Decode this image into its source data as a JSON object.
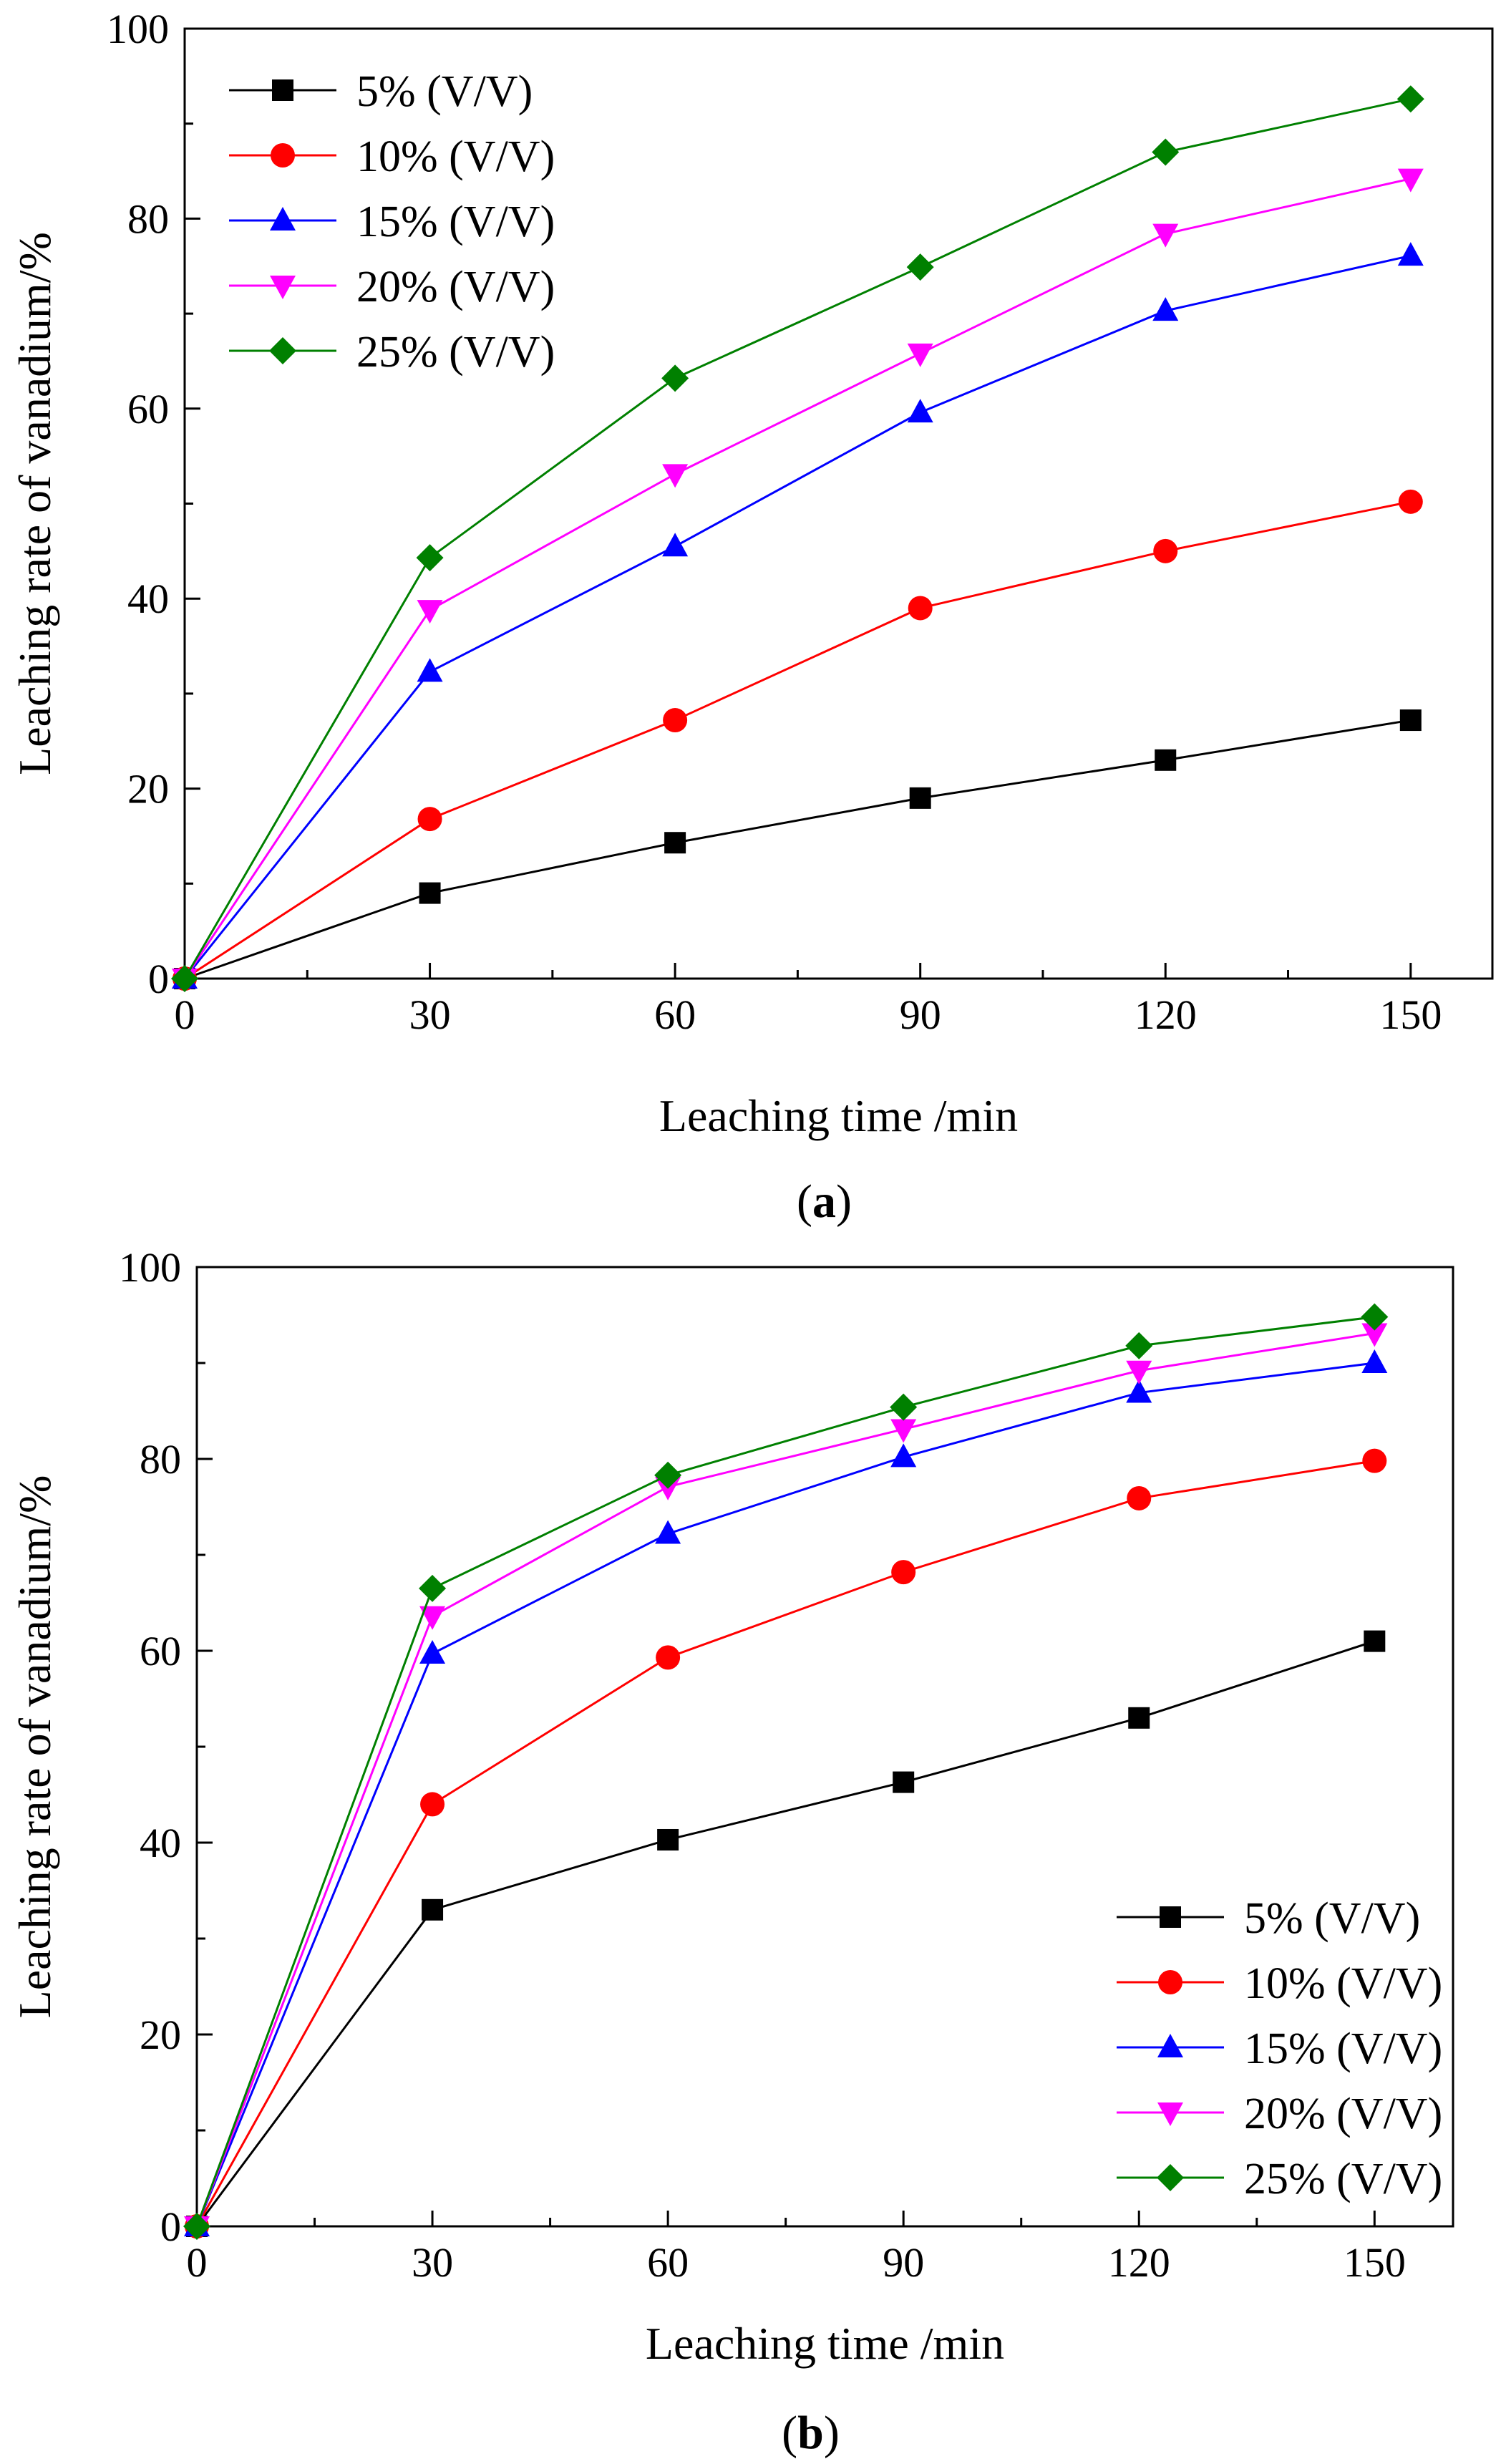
{
  "figure": {
    "panels": [
      "(a)",
      "(b)"
    ]
  },
  "chart_data": [
    {
      "type": "line",
      "panel": "a",
      "label_prefix": "(",
      "label_letter": "a",
      "label_suffix": ")",
      "xlabel": "Leaching time /min",
      "ylabel": "Leaching rate of vanadium/%",
      "xlim": [
        0,
        160
      ],
      "ylim": [
        0,
        100
      ],
      "xticks": [
        0,
        30,
        60,
        90,
        120,
        150
      ],
      "yticks": [
        0,
        20,
        40,
        60,
        80,
        100
      ],
      "legend_position": "top-left",
      "x": [
        0,
        30,
        60,
        90,
        120,
        150
      ],
      "series": [
        {
          "name": "5% (V/V)",
          "color": "#000000",
          "marker": "square",
          "values": [
            0,
            9,
            14.3,
            19,
            23,
            27.2
          ]
        },
        {
          "name": "10% (V/V)",
          "color": "#ff0000",
          "marker": "circle",
          "values": [
            0,
            16.8,
            27.2,
            39,
            45,
            50.2
          ]
        },
        {
          "name": "15% (V/V)",
          "color": "#0000ff",
          "marker": "triangle-up",
          "values": [
            0,
            32.3,
            45.5,
            59.6,
            70.3,
            76.1
          ]
        },
        {
          "name": "20% (V/V)",
          "color": "#ff00ff",
          "marker": "triangle-down",
          "values": [
            0,
            38.8,
            53.1,
            65.8,
            78.4,
            84.2
          ]
        },
        {
          "name": "25% (V/V)",
          "color": "#008000",
          "marker": "diamond",
          "values": [
            0,
            44.3,
            63.2,
            74.9,
            87,
            92.6
          ]
        }
      ]
    },
    {
      "type": "line",
      "panel": "b",
      "label_prefix": "(",
      "label_letter": "b",
      "label_suffix": ")",
      "xlabel": "Leaching time /min",
      "ylabel": "Leaching rate of vanadium/%",
      "xlim": [
        0,
        160
      ],
      "ylim": [
        0,
        100
      ],
      "xticks": [
        0,
        30,
        60,
        90,
        120,
        150
      ],
      "yticks": [
        0,
        20,
        40,
        60,
        80,
        100
      ],
      "legend_position": "bottom-right",
      "x": [
        0,
        30,
        60,
        90,
        120,
        150
      ],
      "series": [
        {
          "name": "5% (V/V)",
          "color": "#000000",
          "marker": "square",
          "values": [
            0,
            33,
            40.3,
            46.3,
            53,
            61
          ]
        },
        {
          "name": "10% (V/V)",
          "color": "#ff0000",
          "marker": "circle",
          "values": [
            0,
            44,
            59.3,
            68.2,
            75.9,
            79.8
          ]
        },
        {
          "name": "15% (V/V)",
          "color": "#0000ff",
          "marker": "triangle-up",
          "values": [
            0,
            59.7,
            72.2,
            80.2,
            86.9,
            90
          ]
        },
        {
          "name": "20% (V/V)",
          "color": "#ff00ff",
          "marker": "triangle-down",
          "values": [
            0,
            63.6,
            77.1,
            83.1,
            89.2,
            93.1
          ]
        },
        {
          "name": "25% (V/V)",
          "color": "#008000",
          "marker": "diamond",
          "values": [
            0,
            66.5,
            78.3,
            85.4,
            91.8,
            94.8
          ]
        }
      ]
    }
  ]
}
